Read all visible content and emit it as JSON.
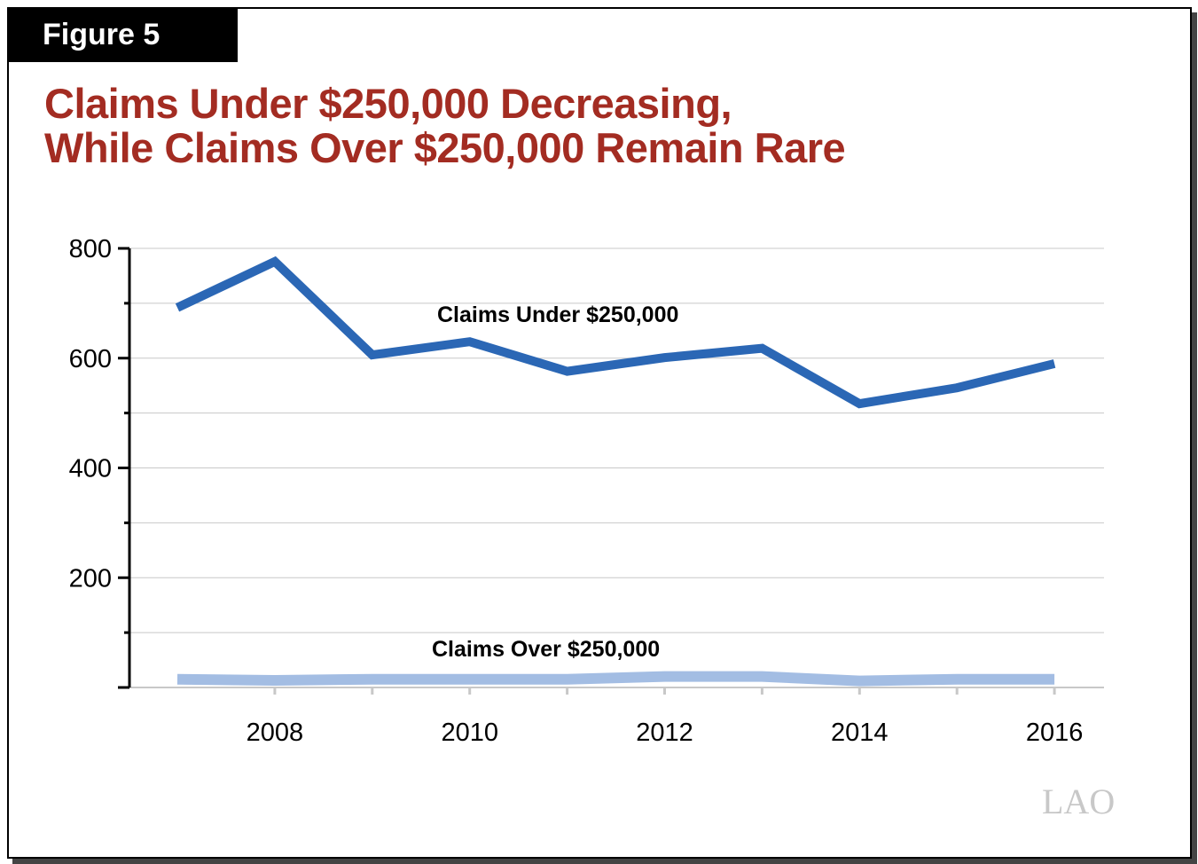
{
  "figure_label": "Figure 5",
  "title_line1": "Claims Under $250,000 Decreasing,",
  "title_line2": "While Claims Over $250,000 Remain Rare",
  "logo": "LAO",
  "chart_data": {
    "type": "line",
    "title": "Claims Under $250,000 Decreasing, While Claims Over $250,000 Remain Rare",
    "x": [
      2007,
      2008,
      2009,
      2010,
      2011,
      2012,
      2013,
      2014,
      2015,
      2016
    ],
    "x_tick_labels": [
      "2008",
      "2010",
      "2012",
      "2014",
      "2016"
    ],
    "y_tick_labels": [
      "800",
      "600",
      "400",
      "200"
    ],
    "ylim": [
      0,
      800
    ],
    "grid": true,
    "series": [
      {
        "name": "Claims Under $250,000",
        "color": "#2b67b5",
        "values": [
          692,
          776,
          606,
          630,
          576,
          601,
          618,
          517,
          546,
          590
        ]
      },
      {
        "name": "Claims Over $250,000",
        "color": "#a3bde3",
        "values": [
          15,
          13,
          15,
          15,
          15,
          20,
          20,
          12,
          15,
          15
        ]
      }
    ]
  }
}
